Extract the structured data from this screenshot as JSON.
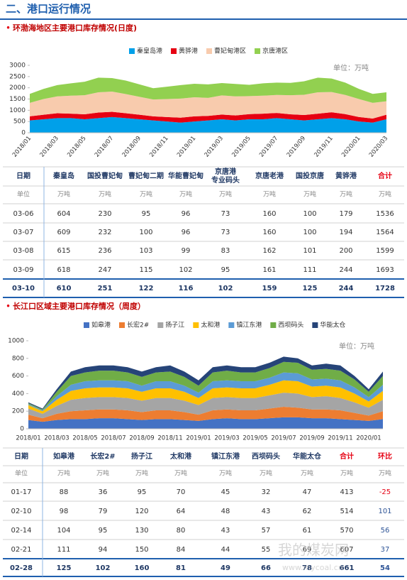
{
  "header": {
    "title": "二、港口运行情况"
  },
  "chart_data": [
    {
      "type": "area",
      "stacked": true,
      "title": "环渤海地区主要港口库存情况(日度)",
      "unit_note": "单位：万吨",
      "categories": [
        "2018/01",
        null,
        "2018/03",
        null,
        "2018/05",
        null,
        "2018/07",
        null,
        "2018/09",
        null,
        "2018/11",
        null,
        "2019/01",
        null,
        "2019/03",
        null,
        "2019/05",
        null,
        "2019/07",
        null,
        "2019/09",
        null,
        "2019/11",
        null,
        "2020/01",
        null,
        "2020/03"
      ],
      "ylim": [
        0,
        3000
      ],
      "yticks": [
        0,
        500,
        1000,
        1500,
        2000,
        2500,
        3000
      ],
      "grid": false,
      "series": [
        {
          "name": "秦皇岛港",
          "color": "#00a0e9",
          "values": [
            550,
            600,
            650,
            650,
            600,
            650,
            700,
            650,
            600,
            550,
            500,
            450,
            500,
            550,
            600,
            550,
            600,
            600,
            650,
            600,
            550,
            600,
            650,
            600,
            500,
            450,
            600
          ]
        },
        {
          "name": "黄骅港",
          "color": "#e60012",
          "values": [
            180,
            200,
            220,
            200,
            220,
            250,
            230,
            220,
            200,
            180,
            200,
            220,
            230,
            200,
            210,
            220,
            230,
            250,
            230,
            220,
            240,
            250,
            260,
            230,
            200,
            180,
            200
          ]
        },
        {
          "name": "曹妃甸港区",
          "color": "#f8cbad",
          "values": [
            600,
            700,
            750,
            800,
            850,
            900,
            900,
            850,
            800,
            750,
            800,
            850,
            850,
            800,
            850,
            850,
            800,
            800,
            800,
            850,
            900,
            950,
            900,
            850,
            800,
            700,
            600
          ]
        },
        {
          "name": "京唐港区",
          "color": "#92d050",
          "values": [
            400,
            450,
            500,
            550,
            600,
            650,
            600,
            600,
            550,
            500,
            550,
            600,
            600,
            600,
            550,
            550,
            500,
            550,
            550,
            550,
            600,
            650,
            600,
            550,
            450,
            400,
            400
          ]
        }
      ]
    },
    {
      "type": "area",
      "stacked": true,
      "title": "长江口区域主要港口库存情况（周度）",
      "unit_note": "单位：万吨",
      "categories": [
        "2018/01",
        null,
        "2018/03",
        null,
        "2018/05",
        null,
        "2018/07",
        null,
        "2018/09",
        null,
        "2018/11",
        null,
        "2019/01",
        null,
        "2019/03",
        null,
        "2019/05",
        null,
        "2019/07",
        null,
        "2019/09",
        null,
        "2019/11",
        null,
        "2020/01",
        null
      ],
      "ylim": [
        0,
        1000
      ],
      "yticks": [
        0,
        200,
        400,
        600,
        800,
        1000
      ],
      "grid": false,
      "series": [
        {
          "name": "如皋港",
          "color": "#4472c4",
          "values": [
            100,
            80,
            100,
            110,
            110,
            120,
            120,
            110,
            100,
            110,
            110,
            100,
            90,
            110,
            120,
            110,
            110,
            120,
            130,
            130,
            120,
            120,
            110,
            100,
            90,
            110
          ]
        },
        {
          "name": "长宏2#",
          "color": "#ed7d31",
          "values": [
            60,
            40,
            70,
            90,
            100,
            100,
            100,
            100,
            90,
            100,
            100,
            90,
            70,
            100,
            100,
            100,
            100,
            110,
            120,
            110,
            100,
            100,
            100,
            80,
            60,
            90
          ]
        },
        {
          "name": "扬子江",
          "color": "#a5a5a5",
          "values": [
            70,
            50,
            90,
            130,
            140,
            140,
            140,
            140,
            130,
            140,
            140,
            130,
            110,
            140,
            140,
            140,
            140,
            150,
            160,
            160,
            140,
            150,
            140,
            120,
            90,
            130
          ]
        },
        {
          "name": "太和港",
          "color": "#ffc000",
          "values": [
            40,
            30,
            70,
            100,
            110,
            110,
            110,
            110,
            100,
            110,
            110,
            100,
            80,
            110,
            110,
            110,
            110,
            120,
            140,
            140,
            120,
            120,
            120,
            100,
            70,
            100
          ]
        },
        {
          "name": "镇江东港",
          "color": "#5b9bd5",
          "values": [
            10,
            10,
            40,
            70,
            80,
            80,
            80,
            80,
            70,
            80,
            80,
            70,
            60,
            80,
            80,
            80,
            80,
            80,
            90,
            90,
            80,
            80,
            80,
            70,
            50,
            70
          ]
        },
        {
          "name": "西坝码头",
          "color": "#70ad47",
          "values": [
            10,
            10,
            50,
            100,
            100,
            110,
            110,
            100,
            100,
            100,
            110,
            100,
            80,
            100,
            110,
            100,
            100,
            110,
            120,
            120,
            110,
            110,
            110,
            90,
            60,
            100
          ]
        },
        {
          "name": "华能太仓",
          "color": "#264478",
          "values": [
            10,
            10,
            30,
            50,
            60,
            60,
            60,
            60,
            60,
            60,
            70,
            60,
            60,
            60,
            60,
            60,
            60,
            60,
            60,
            50,
            50,
            60,
            60,
            40,
            30,
            50
          ]
        }
      ]
    }
  ],
  "tables": [
    {
      "columns": [
        "日期",
        "秦皇岛",
        "国投曹妃甸",
        "曹妃甸二期",
        "华能曹妃甸",
        [
          "京唐港",
          "专业码头"
        ],
        "京唐老港",
        "国投京唐",
        "黄骅港",
        "合计"
      ],
      "units": [
        "单位",
        "万吨",
        "万吨",
        "万吨",
        "万吨",
        "万吨",
        "万吨",
        "万吨",
        "万吨",
        "万吨"
      ],
      "rows": [
        [
          "03-06",
          604,
          230,
          95,
          96,
          73,
          160,
          100,
          179,
          1536
        ],
        [
          "03-07",
          609,
          232,
          100,
          96,
          73,
          160,
          100,
          194,
          1564
        ],
        [
          "03-08",
          615,
          236,
          103,
          99,
          83,
          162,
          101,
          200,
          1599
        ],
        [
          "03-09",
          618,
          247,
          115,
          102,
          95,
          161,
          111,
          244,
          1693
        ],
        [
          "03-10",
          610,
          251,
          122,
          116,
          102,
          159,
          125,
          244,
          1728
        ]
      ]
    },
    {
      "columns": [
        "日期",
        "如皋港",
        "长宏2#",
        "扬子江",
        "太和港",
        "镇江东港",
        "西坝码头",
        "华能太仓",
        "合计",
        "环比"
      ],
      "units": [
        "单位",
        "万吨",
        "万吨",
        "万吨",
        "万吨",
        "万吨",
        "万吨",
        "万吨",
        "万吨",
        "万吨"
      ],
      "rows": [
        [
          "01-17",
          88,
          36,
          95,
          70,
          45,
          32,
          47,
          413,
          -25
        ],
        [
          "02-10",
          98,
          79,
          120,
          64,
          48,
          43,
          62,
          514,
          101
        ],
        [
          "02-14",
          104,
          95,
          130,
          80,
          43,
          57,
          61,
          570,
          56
        ],
        [
          "02-21",
          111,
          94,
          150,
          84,
          44,
          55,
          69,
          607,
          37
        ],
        [
          "02-28",
          125,
          102,
          160,
          81,
          49,
          66,
          78,
          661,
          54
        ]
      ]
    }
  ],
  "watermark": {
    "text": "我的煤炭网",
    "url": "www.mycoal.cn"
  }
}
